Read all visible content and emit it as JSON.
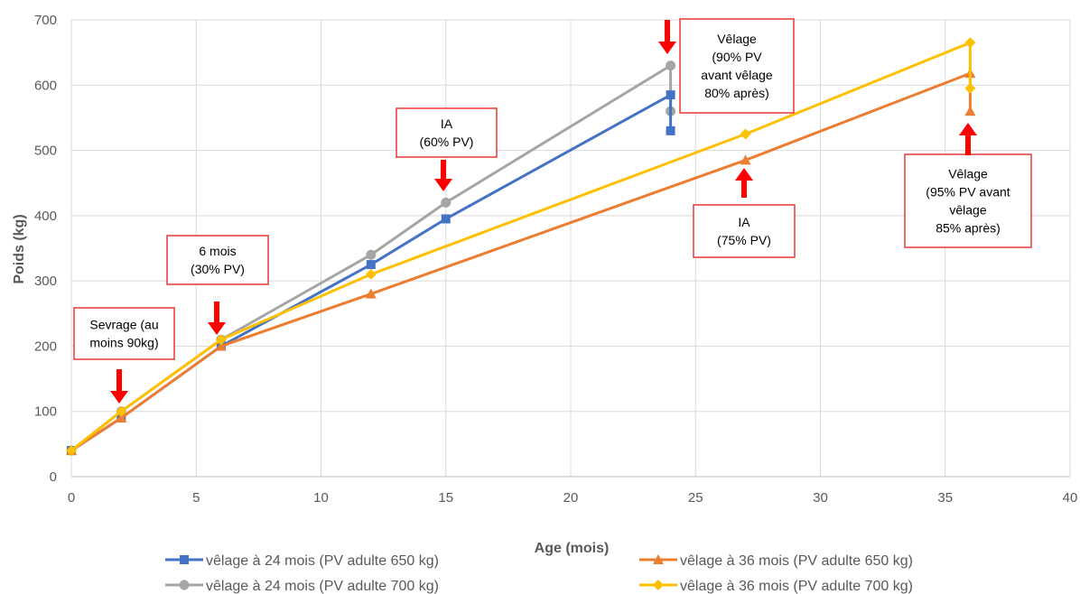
{
  "chart_data": {
    "type": "line",
    "title": "",
    "xlabel": "Age (mois)",
    "ylabel": "Poids (kg)",
    "xlim": [
      0,
      40
    ],
    "ylim": [
      0,
      700
    ],
    "xticks": [
      0,
      5,
      10,
      15,
      20,
      25,
      30,
      35,
      40
    ],
    "yticks": [
      0,
      100,
      200,
      300,
      400,
      500,
      600,
      700
    ],
    "grid": true,
    "legend_position": "bottom",
    "series": [
      {
        "name": "vêlage à 24 mois (PV adulte 650 kg)",
        "color": "#4472C4",
        "marker": "square",
        "x": [
          0,
          2,
          6,
          12,
          15,
          24,
          24
        ],
        "y": [
          40,
          90,
          200,
          325,
          395,
          585,
          530
        ]
      },
      {
        "name": "vêlage à 36 mois (PV adulte 650 kg)",
        "color": "#ED7D31",
        "marker": "triangle",
        "x": [
          0,
          2,
          6,
          12,
          27,
          36,
          36
        ],
        "y": [
          40,
          90,
          200,
          280,
          485,
          618,
          560
        ]
      },
      {
        "name": "vêlage à 24 mois (PV adulte 700 kg)",
        "color": "#A5A5A5",
        "marker": "circle",
        "x": [
          0,
          2,
          6,
          12,
          15,
          24,
          24
        ],
        "y": [
          40,
          100,
          210,
          340,
          420,
          630,
          560
        ]
      },
      {
        "name": "vêlage à 36 mois (PV adulte 700 kg)",
        "color": "#FFC000",
        "marker": "diamond",
        "x": [
          0,
          2,
          6,
          12,
          27,
          36,
          36
        ],
        "y": [
          40,
          100,
          210,
          310,
          525,
          665,
          595
        ]
      }
    ],
    "annotations": [
      {
        "lines": [
          "Sevrage (au",
          "moins 90kg)"
        ],
        "arrow": "down"
      },
      {
        "lines": [
          "6 mois",
          "(30% PV)"
        ],
        "arrow": "down"
      },
      {
        "lines": [
          "IA",
          "(60% PV)"
        ],
        "arrow": "down"
      },
      {
        "lines": [
          "Vêlage",
          "(90% PV",
          "avant vêlage",
          "80% après)"
        ],
        "arrow": "down"
      },
      {
        "lines": [
          "IA",
          "(75% PV)"
        ],
        "arrow": "up"
      },
      {
        "lines": [
          "Vêlage",
          "(95% PV avant",
          "vêlage",
          "85% après)"
        ],
        "arrow": "up"
      }
    ],
    "colors": {
      "arrow": "#FF0000",
      "box_border": "#E53935",
      "grid": "#D9D9D9",
      "text": "#595959"
    }
  }
}
